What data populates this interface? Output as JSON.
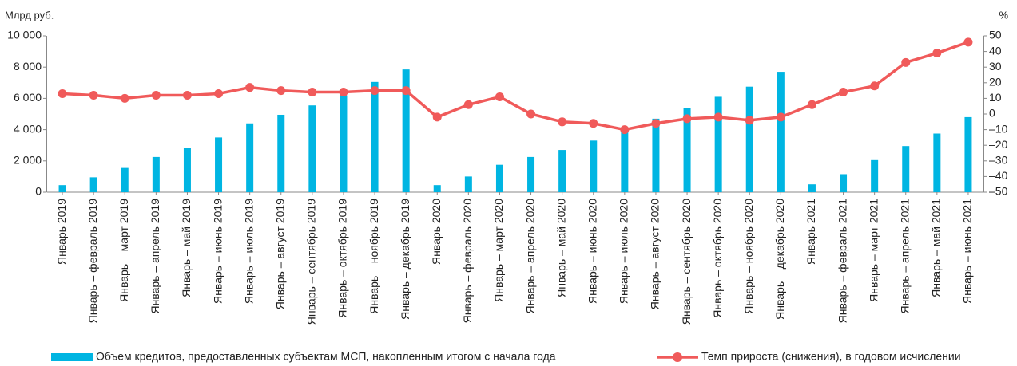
{
  "chart_data": {
    "type": "bar_line",
    "y_label": "Млрд руб.",
    "y2_label": "%",
    "categories": [
      "Январь 2019",
      "Январь – февраль 2019",
      "Январь – март 2019",
      "Январь – апрель 2019",
      "Январь – май 2019",
      "Январь – июнь 2019",
      "Январь – июль 2019",
      "Январь – август 2019",
      "Январь – сентябрь 2019",
      "Январь – октябрь 2019",
      "Январь – ноябрь 2019",
      "Январь – декабрь 2019",
      "Январь 2020",
      "Январь – февраль 2020",
      "Январь – март 2020",
      "Январь – апрель 2020",
      "Январь – май 2020",
      "Январь – июнь 2020",
      "Январь – июль 2020",
      "Январь – август 2020",
      "Январь – сентябрь 2020",
      "Январь – октябрь 2020",
      "Январь – ноябрь 2020",
      "Январь – декабрь 2020",
      "Январь 2021",
      "Январь – февраль 2021",
      "Январь – март 2021",
      "Январь – апрель 2021",
      "Январь – май 2021",
      "Январь – июнь 2021"
    ],
    "series": [
      {
        "name": "Объем кредитов, предоставленных субъектам МСП, накопленным итогом с начала года",
        "type": "bar",
        "color": "#00b5e2",
        "values": [
          450,
          950,
          1550,
          2250,
          2850,
          3500,
          4400,
          4950,
          5550,
          6200,
          7050,
          7850,
          450,
          1000,
          1750,
          2250,
          2700,
          3300,
          3950,
          4700,
          5400,
          6100,
          6750,
          7700,
          500,
          1150,
          2050,
          2950,
          3750,
          4800
        ]
      },
      {
        "name": "Темп прироста (снижения), в годовом исчислении",
        "type": "line",
        "axis": "y2",
        "color": "#f05a5a",
        "values": [
          13,
          12,
          10,
          12,
          12,
          13,
          17,
          15,
          14,
          14,
          15,
          15,
          -2,
          6,
          11,
          0,
          -5,
          -6,
          -10,
          -6,
          -3,
          -2,
          -4,
          -2,
          6,
          14,
          18,
          33,
          39,
          46
        ]
      }
    ],
    "ylim": [
      0,
      10000
    ],
    "yticks": [
      0,
      {
        "value": 2000,
        "label": "2 000"
      },
      {
        "value": 4000,
        "label": "4 000"
      },
      {
        "value": 6000,
        "label": "6 000"
      },
      {
        "value": 8000,
        "label": "8 000"
      },
      {
        "value": 10000,
        "label": "10 000"
      }
    ],
    "y2lim": [
      -50,
      50
    ],
    "y2ticks": [
      {
        "value": -50,
        "label": "–50"
      },
      {
        "value": -40,
        "label": "–40"
      },
      {
        "value": -30,
        "label": "–30"
      },
      {
        "value": -20,
        "label": "–20"
      },
      {
        "value": -10,
        "label": "–10"
      },
      0,
      10,
      20,
      30,
      40,
      50
    ]
  }
}
